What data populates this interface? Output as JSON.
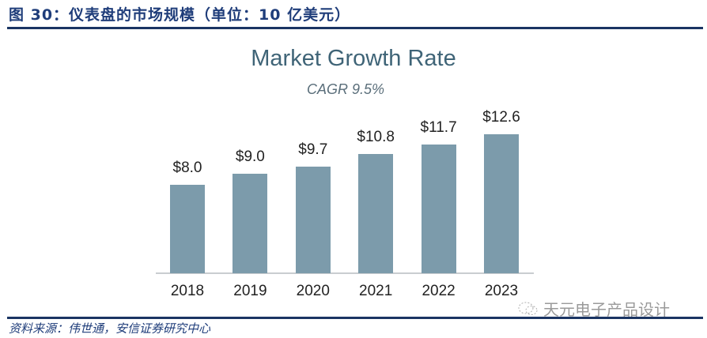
{
  "figure": {
    "title": "图 30：仪表盘的市场规模（单位：10 亿美元）",
    "source": "资料来源：伟世通，安信证券研究中心",
    "watermark": "天元电子产品设计"
  },
  "colors": {
    "bar": "#7c9bab",
    "title_blue": "#1f3d7a",
    "rule": "#1a3463",
    "chart_title": "#3f6477"
  },
  "chart_data": {
    "type": "bar",
    "title": "Market Growth Rate",
    "subtitle": "CAGR 9.5%",
    "categories": [
      "2018",
      "2019",
      "2020",
      "2021",
      "2022",
      "2023"
    ],
    "values": [
      8.0,
      9.0,
      9.7,
      10.8,
      11.7,
      12.6
    ],
    "data_labels": [
      "$8.0",
      "$9.0",
      "$9.7",
      "$10.8",
      "$11.7",
      "$12.6"
    ],
    "xlabel": "",
    "ylabel": "",
    "unit": "10亿美元",
    "grid": false,
    "legend": "none"
  }
}
